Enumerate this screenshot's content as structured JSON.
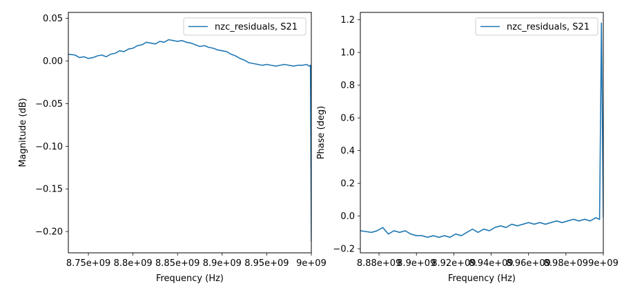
{
  "chart_data": [
    {
      "type": "line",
      "xlabel": "Frequency (Hz)",
      "ylabel": "Magnitude (dB)",
      "xlim": [
        8727500000.0,
        9000000000.0
      ],
      "ylim": [
        -0.225,
        0.057
      ],
      "x_ticks": [
        8750000000.0,
        8800000000.0,
        8850000000.0,
        8900000000.0,
        8950000000.0,
        9000000000.0
      ],
      "x_tick_labels": [
        "8.75e+09",
        "8.8e+09",
        "8.85e+09",
        "8.9e+09",
        "8.95e+09",
        "9e+09"
      ],
      "y_ticks": [
        0.05,
        0.0,
        -0.05,
        -0.1,
        -0.15,
        -0.2
      ],
      "y_tick_labels": [
        "0.05",
        "0.00",
        "−0.05",
        "−0.10",
        "−0.15",
        "−0.20"
      ],
      "legend": "top-right",
      "series": [
        {
          "name": "nzc_residuals, S21",
          "color": "#1f77b4",
          "x": [
            8727500000.0,
            8735000000.0,
            8740000000.0,
            8745000000.0,
            8750000000.0,
            8755000000.0,
            8760000000.0,
            8765000000.0,
            8770000000.0,
            8775000000.0,
            8780000000.0,
            8785000000.0,
            8790000000.0,
            8795000000.0,
            8800000000.0,
            8805000000.0,
            8810000000.0,
            8815000000.0,
            8820000000.0,
            8825000000.0,
            8830000000.0,
            8835000000.0,
            8840000000.0,
            8845000000.0,
            8850000000.0,
            8855000000.0,
            8860000000.0,
            8865000000.0,
            8870000000.0,
            8875000000.0,
            8880000000.0,
            8885000000.0,
            8890000000.0,
            8895000000.0,
            8900000000.0,
            8905000000.0,
            8910000000.0,
            8915000000.0,
            8920000000.0,
            8925000000.0,
            8930000000.0,
            8935000000.0,
            8940000000.0,
            8945000000.0,
            8950000000.0,
            8955000000.0,
            8960000000.0,
            8965000000.0,
            8970000000.0,
            8975000000.0,
            8980000000.0,
            8985000000.0,
            8990000000.0,
            8995000000.0,
            8997500000.0,
            8999000000.0,
            9000000000.0
          ],
          "y": [
            0.008,
            0.007,
            0.004,
            0.005,
            0.003,
            0.004,
            0.006,
            0.007,
            0.005,
            0.008,
            0.009,
            0.012,
            0.011,
            0.014,
            0.015,
            0.018,
            0.019,
            0.022,
            0.021,
            0.02,
            0.023,
            0.022,
            0.025,
            0.024,
            0.023,
            0.024,
            0.022,
            0.021,
            0.019,
            0.017,
            0.018,
            0.016,
            0.015,
            0.013,
            0.012,
            0.011,
            0.008,
            0.006,
            0.003,
            0.001,
            -0.002,
            -0.003,
            -0.004,
            -0.005,
            -0.004,
            -0.005,
            -0.006,
            -0.005,
            -0.004,
            -0.005,
            -0.006,
            -0.005,
            -0.005,
            -0.004,
            -0.006,
            -0.005,
            -0.212
          ]
        }
      ]
    },
    {
      "type": "line",
      "xlabel": "Frequency (Hz)",
      "ylabel": "Phase (deg)",
      "xlim": [
        8870000000.0,
        9000000000.0
      ],
      "ylim": [
        -0.225,
        1.245
      ],
      "x_ticks": [
        8880000000.0,
        8900000000.0,
        8920000000.0,
        8940000000.0,
        8960000000.0,
        8980000000.0,
        9000000000.0
      ],
      "x_tick_labels": [
        "8.88e+09",
        "8.9e+09",
        "8.92e+09",
        "8.94e+09",
        "8.96e+09",
        "8.98e+09",
        "9e+09"
      ],
      "y_ticks": [
        1.2,
        1.0,
        0.8,
        0.6,
        0.4,
        0.2,
        0.0,
        -0.2
      ],
      "y_tick_labels": [
        "1.2",
        "1.0",
        "0.8",
        "0.6",
        "0.4",
        "0.2",
        "0.0",
        "−0.2"
      ],
      "legend": "top-right",
      "series": [
        {
          "name": "nzc_residuals, S21",
          "color": "#1f77b4",
          "x": [
            8870000000.0,
            8873000000.0,
            8876000000.0,
            8879000000.0,
            8882000000.0,
            8885000000.0,
            8888000000.0,
            8891000000.0,
            8894000000.0,
            8897000000.0,
            8900000000.0,
            8903000000.0,
            8906000000.0,
            8909000000.0,
            8912000000.0,
            8915000000.0,
            8918000000.0,
            8921000000.0,
            8924000000.0,
            8927000000.0,
            8930000000.0,
            8933000000.0,
            8936000000.0,
            8939000000.0,
            8942000000.0,
            8945000000.0,
            8948000000.0,
            8951000000.0,
            8954000000.0,
            8957000000.0,
            8960000000.0,
            8963000000.0,
            8966000000.0,
            8969000000.0,
            8972000000.0,
            8975000000.0,
            8978000000.0,
            8981000000.0,
            8984000000.0,
            8987000000.0,
            8990000000.0,
            8993000000.0,
            8996000000.0,
            8998000000.0,
            8999000000.0,
            9000000000.0
          ],
          "y": [
            -0.09,
            -0.095,
            -0.1,
            -0.09,
            -0.07,
            -0.11,
            -0.09,
            -0.1,
            -0.09,
            -0.11,
            -0.12,
            -0.12,
            -0.13,
            -0.12,
            -0.13,
            -0.12,
            -0.13,
            -0.11,
            -0.12,
            -0.1,
            -0.08,
            -0.1,
            -0.08,
            -0.09,
            -0.07,
            -0.06,
            -0.07,
            -0.05,
            -0.06,
            -0.05,
            -0.04,
            -0.05,
            -0.04,
            -0.05,
            -0.04,
            -0.03,
            -0.04,
            -0.03,
            -0.02,
            -0.03,
            -0.02,
            -0.03,
            -0.01,
            -0.02,
            1.18,
            -0.01
          ]
        }
      ]
    }
  ]
}
